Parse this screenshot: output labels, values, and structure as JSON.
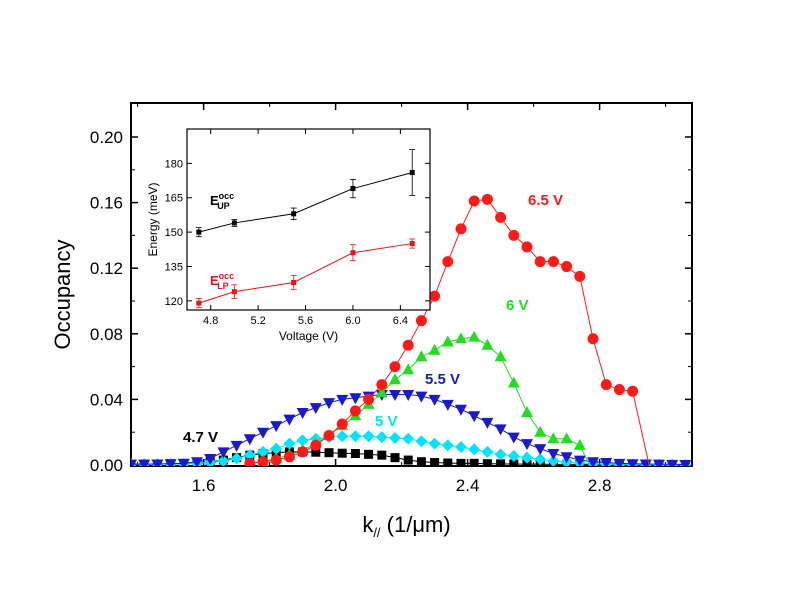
{
  "chart_data": [
    {
      "type": "scatter",
      "xlabel_main": "k",
      "xlabel_sub": "//",
      "xlabel_unit": " (1/μm)",
      "ylabel": "Occupancy",
      "xlim": [
        1.38,
        3.08
      ],
      "ylim": [
        0.0,
        0.22
      ],
      "xticks": [
        "1.6",
        "2.0",
        "2.4",
        "2.8"
      ],
      "xtick_values": [
        1.6,
        2.0,
        2.4,
        2.8
      ],
      "yticks": [
        "0.00",
        "0.04",
        "0.08",
        "0.12",
        "0.16",
        "0.20"
      ],
      "ytick_values": [
        0.0,
        0.04,
        0.08,
        0.12,
        0.16,
        0.2
      ],
      "series": [
        {
          "name": "4.7 V",
          "color": "#000000",
          "marker": "square",
          "x": [
            1.38,
            1.42,
            1.46,
            1.5,
            1.54,
            1.58,
            1.62,
            1.66,
            1.7,
            1.74,
            1.78,
            1.82,
            1.86,
            1.9,
            1.94,
            1.98,
            2.02,
            2.06,
            2.1,
            2.14,
            2.18,
            2.22,
            2.26,
            2.3,
            2.34,
            2.38,
            2.42,
            2.46,
            2.5,
            2.54,
            2.58,
            2.62,
            2.66,
            2.7,
            2.74,
            2.78,
            2.82,
            2.86,
            2.9,
            2.94,
            2.98,
            3.02,
            3.06
          ],
          "y": [
            0.0005,
            0.0005,
            0.0006,
            0.0008,
            0.001,
            0.0015,
            0.002,
            0.003,
            0.0045,
            0.006,
            0.007,
            0.0075,
            0.008,
            0.008,
            0.0078,
            0.0075,
            0.0072,
            0.007,
            0.0065,
            0.006,
            0.0045,
            0.003,
            0.002,
            0.0015,
            0.0012,
            0.001,
            0.001,
            0.0008,
            0.0007,
            0.0006,
            0.0005,
            0.0005,
            0.0004,
            0.0004,
            0.0003,
            0.0003,
            0.0003,
            0.0002,
            0.0002,
            0.0002,
            0.0001,
            0.0001,
            0.0001
          ]
        },
        {
          "name": "5 V",
          "color": "#00e5ff",
          "marker": "diamond",
          "x": [
            1.38,
            1.42,
            1.46,
            1.5,
            1.54,
            1.58,
            1.62,
            1.66,
            1.7,
            1.74,
            1.78,
            1.82,
            1.86,
            1.9,
            1.94,
            1.98,
            2.02,
            2.06,
            2.1,
            2.14,
            2.18,
            2.22,
            2.26,
            2.3,
            2.34,
            2.38,
            2.42,
            2.46,
            2.5,
            2.54,
            2.58,
            2.62,
            2.66,
            2.7,
            2.74,
            2.78,
            2.82,
            2.86,
            2.9,
            2.94,
            2.98,
            3.02,
            3.06
          ],
          "y": [
            0.0005,
            0.0005,
            0.0005,
            0.0006,
            0.0007,
            0.001,
            0.0015,
            0.0025,
            0.004,
            0.006,
            0.008,
            0.01,
            0.013,
            0.015,
            0.016,
            0.017,
            0.0175,
            0.0175,
            0.0175,
            0.017,
            0.0165,
            0.016,
            0.0145,
            0.013,
            0.012,
            0.011,
            0.0095,
            0.008,
            0.0065,
            0.0055,
            0.0045,
            0.0035,
            0.0025,
            0.0018,
            0.0012,
            0.0008,
            0.0005,
            0.0004,
            0.0003,
            0.0002,
            0.0002,
            0.0001,
            0.0001
          ]
        },
        {
          "name": "5.5 V",
          "color": "#1a1acc",
          "marker": "triangle-down",
          "x": [
            1.38,
            1.42,
            1.46,
            1.5,
            1.54,
            1.58,
            1.62,
            1.66,
            1.7,
            1.74,
            1.78,
            1.82,
            1.86,
            1.9,
            1.94,
            1.98,
            2.02,
            2.06,
            2.1,
            2.14,
            2.18,
            2.22,
            2.26,
            2.3,
            2.34,
            2.38,
            2.42,
            2.46,
            2.5,
            2.54,
            2.58,
            2.62,
            2.66,
            2.7,
            2.74,
            2.78,
            2.82,
            2.86,
            2.9,
            2.94,
            2.98,
            3.02,
            3.06
          ],
          "y": [
            0.0005,
            0.0005,
            0.0006,
            0.0008,
            0.001,
            0.002,
            0.004,
            0.008,
            0.012,
            0.016,
            0.02,
            0.024,
            0.028,
            0.032,
            0.035,
            0.038,
            0.04,
            0.041,
            0.042,
            0.043,
            0.043,
            0.043,
            0.042,
            0.04,
            0.037,
            0.034,
            0.03,
            0.026,
            0.022,
            0.017,
            0.013,
            0.01,
            0.007,
            0.005,
            0.003,
            0.002,
            0.0015,
            0.001,
            0.0008,
            0.0006,
            0.0005,
            0.0004,
            0.0003
          ]
        },
        {
          "name": "6 V",
          "color": "#22dd22",
          "marker": "triangle-up",
          "x": [
            1.74,
            1.78,
            1.82,
            1.86,
            1.9,
            1.94,
            1.98,
            2.02,
            2.06,
            2.1,
            2.14,
            2.18,
            2.22,
            2.26,
            2.3,
            2.34,
            2.38,
            2.42,
            2.46,
            2.5,
            2.54,
            2.58,
            2.62,
            2.66,
            2.7,
            2.74
          ],
          "y": [
            0.001,
            0.002,
            0.004,
            0.006,
            0.009,
            0.013,
            0.018,
            0.024,
            0.03,
            0.037,
            0.044,
            0.052,
            0.058,
            0.066,
            0.07,
            0.075,
            0.077,
            0.078,
            0.073,
            0.066,
            0.05,
            0.032,
            0.02,
            0.016,
            0.016,
            0.012
          ]
        },
        {
          "name": "6.5 V",
          "color": "#ff1a1a",
          "marker": "circle",
          "x": [
            1.74,
            1.78,
            1.82,
            1.86,
            1.9,
            1.94,
            1.98,
            2.02,
            2.06,
            2.1,
            2.14,
            2.18,
            2.22,
            2.26,
            2.3,
            2.34,
            2.38,
            2.42,
            2.46,
            2.5,
            2.54,
            2.58,
            2.62,
            2.66,
            2.7,
            2.74,
            2.78,
            2.82,
            2.86,
            2.9
          ],
          "y": [
            0.001,
            0.002,
            0.003,
            0.005,
            0.008,
            0.012,
            0.018,
            0.025,
            0.033,
            0.04,
            0.049,
            0.06,
            0.073,
            0.088,
            0.103,
            0.124,
            0.144,
            0.161,
            0.162,
            0.151,
            0.14,
            0.133,
            0.124,
            0.124,
            0.121,
            0.115,
            0.077,
            0.049,
            0.046,
            0.045
          ]
        }
      ],
      "series_labels": [
        "4.7 V",
        "5 V",
        "5.5 V",
        "6 V",
        "6.5 V"
      ]
    },
    {
      "type": "line",
      "xlabel": "Voltage (V)",
      "ylabel": "Energy (meV)",
      "xlim": [
        4.6,
        6.65
      ],
      "ylim": [
        116,
        195
      ],
      "xticks": [
        "4.8",
        "5.2",
        "5.6",
        "6.0",
        "6.4"
      ],
      "xtick_values": [
        4.8,
        5.2,
        5.6,
        6.0,
        6.4
      ],
      "yticks": [
        "120",
        "135",
        "150",
        "165",
        "180"
      ],
      "ytick_values": [
        120,
        135,
        150,
        165,
        180
      ],
      "series": [
        {
          "name": "E",
          "sup": "occ",
          "sub": "UP",
          "color": "#000000",
          "x": [
            4.7,
            5.0,
            5.5,
            6.0,
            6.5
          ],
          "y": [
            150,
            154,
            158,
            169,
            176
          ],
          "err": [
            2,
            1.5,
            2.5,
            4,
            10
          ]
        },
        {
          "name": "E",
          "sup": "occ",
          "sub": "LP",
          "color": "#ee1111",
          "x": [
            4.7,
            5.0,
            5.5,
            6.0,
            6.5
          ],
          "y": [
            119,
            124,
            128,
            141,
            145
          ],
          "err": [
            2,
            3,
            3,
            3.5,
            2
          ]
        }
      ]
    }
  ]
}
